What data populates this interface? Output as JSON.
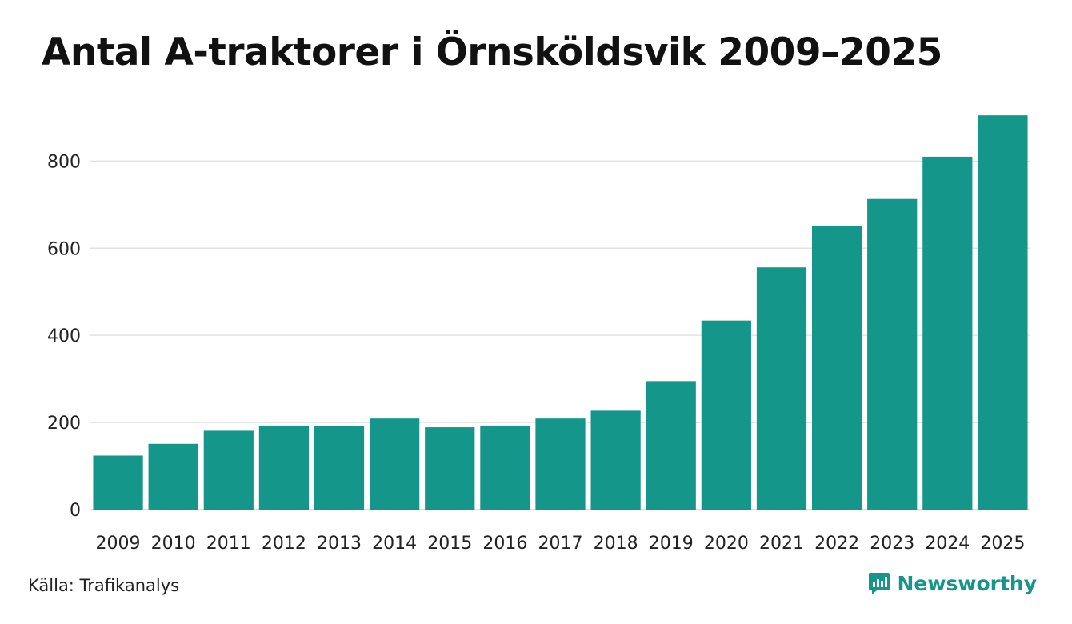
{
  "chart_data": {
    "type": "bar",
    "title": "Antal A-traktorer i Örnsköldsvik 2009–2025",
    "xlabel": "",
    "ylabel": "",
    "categories": [
      "2009",
      "2010",
      "2011",
      "2012",
      "2013",
      "2014",
      "2015",
      "2016",
      "2017",
      "2018",
      "2019",
      "2020",
      "2021",
      "2022",
      "2023",
      "2024",
      "2025"
    ],
    "values": [
      124,
      151,
      181,
      193,
      191,
      209,
      189,
      193,
      209,
      227,
      295,
      434,
      556,
      652,
      713,
      810,
      905
    ],
    "ylim": [
      0,
      920
    ],
    "yticks": [
      0,
      200,
      400,
      600,
      800
    ],
    "grid": true,
    "bar_color": "#14968a"
  },
  "footer": {
    "source": "Källa: Trafikanalys",
    "brand": "Newsworthy",
    "brand_color": "#14968a",
    "brand_icon": "bar-chart-speech-bubble-icon"
  }
}
